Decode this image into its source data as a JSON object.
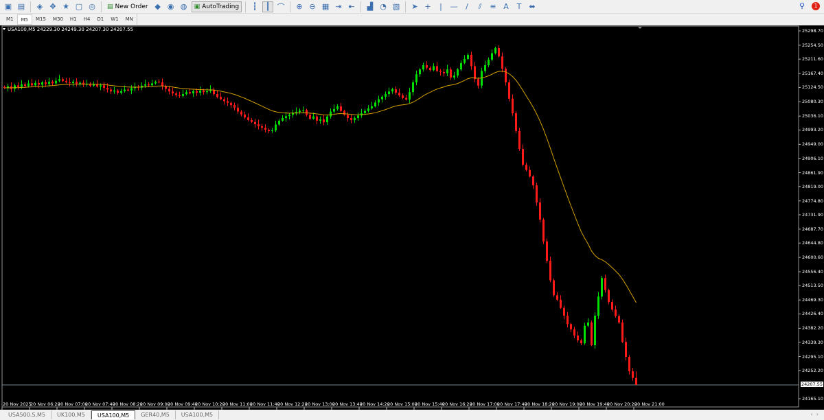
{
  "toolbar": {
    "new_order_label": "New Order",
    "autotrading_label": "AutoTrading",
    "notification_count": "1",
    "icons": [
      "new-chart-icon",
      "profiles-icon",
      "market-watch-icon",
      "navigator-icon",
      "data-window-icon",
      "terminal-icon",
      "strategy-tester-icon",
      "new-order-icon",
      "metaeditor-icon",
      "signals-icon",
      "community-icon",
      "autotrading-icon",
      "bar-chart-icon",
      "candlestick-icon",
      "line-chart-icon",
      "zoom-in-icon",
      "zoom-out-icon",
      "tile-windows-icon",
      "auto-scroll-icon",
      "chart-shift-icon",
      "indicators-icon",
      "periods-icon",
      "templates-icon",
      "cursor-icon",
      "crosshair-icon",
      "vertical-line-icon",
      "horizontal-line-icon",
      "trendline-icon",
      "channel-icon",
      "fibonacci-icon",
      "text-icon",
      "text-label-icon",
      "shapes-icon",
      "search-icon",
      "notification-icon"
    ]
  },
  "timeframes": [
    "M1",
    "M5",
    "M15",
    "M30",
    "H1",
    "H4",
    "D1",
    "W1",
    "MN"
  ],
  "active_timeframe": "M5",
  "chart": {
    "symbol_info": "USA100,M5  24229.30 24249.30 24207.30 24207.55",
    "current_price": "24207.55"
  },
  "tabs": [
    "USA500.S,M5",
    "UK100,M5",
    "USA100,M5",
    "GER40,M5",
    "USA100,M5"
  ],
  "active_tab": 2,
  "colors": {
    "background": "#000000",
    "bull": "#00e000",
    "bear": "#ff1a1a",
    "ma": "#d4a000",
    "axis_text": "#ffffff"
  },
  "chart_data": {
    "type": "candlestick",
    "symbol": "USA100",
    "timeframe": "M5",
    "ylim": [
      24165.1,
      25298.7
    ],
    "y_ticks": [
      "25298.70",
      "25254.50",
      "25211.60",
      "25167.40",
      "25124.50",
      "25080.30",
      "25036.10",
      "24993.20",
      "24949.00",
      "24906.10",
      "24861.90",
      "24819.00",
      "24774.80",
      "24731.90",
      "24687.70",
      "24644.80",
      "24600.60",
      "24556.40",
      "24513.50",
      "24469.30",
      "24426.40",
      "24382.20",
      "24339.30",
      "24295.10",
      "24252.20",
      "24165.10"
    ],
    "x_ticks": [
      "20 Nov 2025",
      "20 Nov 06:20",
      "20 Nov 07:00",
      "20 Nov 07:40",
      "20 Nov 08:20",
      "20 Nov 09:00",
      "20 Nov 09:40",
      "20 Nov 10:20",
      "20 Nov 11:00",
      "20 Nov 11:40",
      "20 Nov 12:20",
      "20 Nov 13:00",
      "20 Nov 13:40",
      "20 Nov 14:20",
      "20 Nov 15:00",
      "20 Nov 15:40",
      "20 Nov 16:20",
      "20 Nov 17:00",
      "20 Nov 17:40",
      "20 Nov 18:20",
      "20 Nov 19:00",
      "20 Nov 19:40",
      "20 Nov 20:20",
      "20 Nov 21:00"
    ],
    "last": {
      "open": 24229.3,
      "high": 24249.3,
      "low": 24207.3,
      "close": 24207.55
    },
    "closes": [
      25123,
      25128,
      25120,
      25131,
      25126,
      25134,
      25129,
      25137,
      25131,
      25138,
      25133,
      25140,
      25135,
      25142,
      25137,
      25145,
      25150,
      25144,
      25140,
      25138,
      25142,
      25136,
      25139,
      25133,
      25136,
      25130,
      25134,
      25127,
      25131,
      25123,
      25118,
      25112,
      25115,
      25108,
      25113,
      25118,
      25115,
      25122,
      25126,
      25124,
      25130,
      25134,
      25131,
      25137,
      25142,
      25140,
      25128,
      25120,
      25112,
      25106,
      25101,
      25098,
      25104,
      25110,
      25106,
      25113,
      25108,
      25115,
      25110,
      25113,
      25118,
      25104,
      25095,
      25088,
      25082,
      25077,
      25070,
      25062,
      25050,
      25041,
      25032,
      25024,
      25018,
      25011,
      25005,
      25000,
      24994,
      24990,
      24992,
      25010,
      25022,
      25030,
      25036,
      25040,
      25046,
      25049,
      25053,
      25055,
      25040,
      25028,
      25035,
      25022,
      25026,
      25017,
      25035,
      25050,
      25058,
      25066,
      25052,
      25040,
      25030,
      25024,
      25030,
      25038,
      25045,
      25052,
      25060,
      25066,
      25078,
      25088,
      25096,
      25104,
      25112,
      25119,
      25108,
      25100,
      25092,
      25087,
      25110,
      25140,
      25165,
      25180,
      25193,
      25185,
      25178,
      25190,
      25175,
      25172,
      25168,
      25180,
      25155,
      25161,
      25180,
      25200,
      25212,
      25225,
      25190,
      25150,
      25130,
      25175,
      25193,
      25210,
      25230,
      25246,
      25220,
      25182,
      25140,
      25090,
      25045,
      24990,
      24935,
      24886,
      24870,
      24850,
      24823,
      24770,
      24717,
      24650,
      24590,
      24530,
      24484,
      24470,
      24445,
      24421,
      24395,
      24379,
      24360,
      24345,
      24336,
      24390,
      24400,
      24330,
      24421,
      24480,
      24537,
      24500,
      24463,
      24440,
      24420,
      24400,
      24340,
      24294,
      24250,
      24229.3,
      24207.55
    ],
    "indicators": [
      {
        "type": "moving-average",
        "color": "#d4a000"
      }
    ]
  }
}
